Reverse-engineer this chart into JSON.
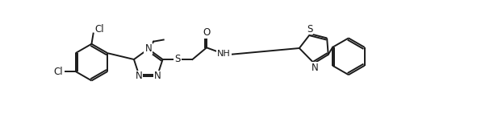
{
  "bg_color": "#ffffff",
  "line_color": "#1a1a1a",
  "line_width": 1.4,
  "font_size": 8.5,
  "figsize": [
    5.96,
    1.42
  ],
  "dpi": 100,
  "xlim": [
    0,
    11.5
  ],
  "ylim": [
    0.0,
    3.2
  ]
}
